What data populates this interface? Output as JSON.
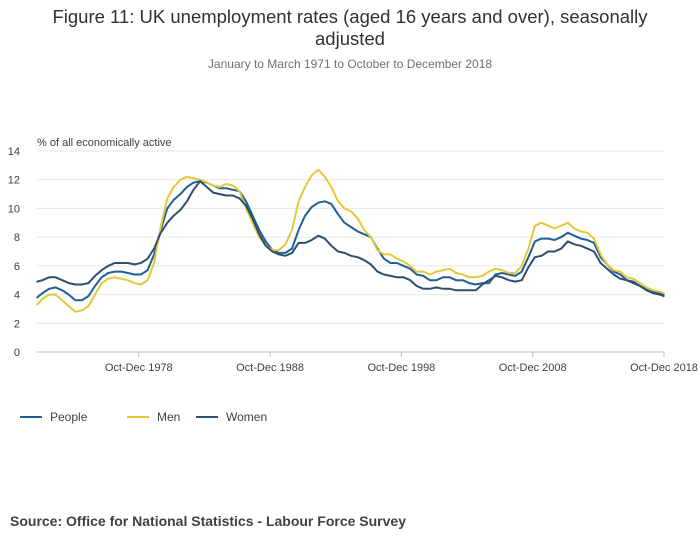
{
  "title": "Figure 11: UK unemployment rates (aged 16 years and over), seasonally adjusted",
  "subtitle": "January to March 1971 to October to December 2018",
  "source": "Source: Office for National Statistics - Labour Force Survey",
  "colors": {
    "people": "#206095",
    "men": "#e6c73a",
    "women": "#2e4f72",
    "gridline": "#e6e6e6",
    "axis_text": "#414042"
  },
  "chart_data": {
    "type": "line",
    "title": "Figure 11: UK unemployment rates (aged 16 years and over), seasonally adjusted",
    "subtitle": "January to March 1971 to October to December 2018",
    "ylabel": "% of all economically active",
    "xlabel": "",
    "ylim": [
      0,
      14
    ],
    "yticks": [
      0,
      2,
      4,
      6,
      8,
      10,
      12,
      14
    ],
    "xlim": [
      1971.08,
      2018.83
    ],
    "xticks": [
      {
        "x": 1978.83,
        "label": "Oct-Dec 1978"
      },
      {
        "x": 1988.83,
        "label": "Oct-Dec 1988"
      },
      {
        "x": 1998.83,
        "label": "Oct-Dec 1998"
      },
      {
        "x": 2008.83,
        "label": "Oct-Dec 2008"
      },
      {
        "x": 2018.83,
        "label": "Oct-Dec 2018"
      }
    ],
    "grid": true,
    "legend": "bottom-left",
    "series": [
      {
        "name": "People",
        "color": "#206095",
        "x": [
          1971.1,
          1971.5,
          1972,
          1972.5,
          1973,
          1973.5,
          1974,
          1974.5,
          1975,
          1975.5,
          1976,
          1976.5,
          1977,
          1977.5,
          1978,
          1978.5,
          1979,
          1979.5,
          1980,
          1980.5,
          1981,
          1981.5,
          1982,
          1982.5,
          1983,
          1983.5,
          1984,
          1984.5,
          1985,
          1985.5,
          1986,
          1986.5,
          1987,
          1987.5,
          1988,
          1988.5,
          1989,
          1989.5,
          1990,
          1990.5,
          1991,
          1991.5,
          1992,
          1992.5,
          1993,
          1993.5,
          1994,
          1994.5,
          1995,
          1995.5,
          1996,
          1996.5,
          1997,
          1997.5,
          1998,
          1998.5,
          1999,
          1999.5,
          2000,
          2000.5,
          2001,
          2001.5,
          2002,
          2002.5,
          2003,
          2003.5,
          2004,
          2004.5,
          2005,
          2005.5,
          2006,
          2006.5,
          2007,
          2007.5,
          2008,
          2008.5,
          2009,
          2009.5,
          2010,
          2010.5,
          2011,
          2011.5,
          2012,
          2012.5,
          2013,
          2013.5,
          2014,
          2014.5,
          2015,
          2015.5,
          2016,
          2016.5,
          2017,
          2017.5,
          2018,
          2018.5,
          2018.8
        ],
        "y": [
          3.8,
          4.1,
          4.4,
          4.5,
          4.3,
          4.0,
          3.6,
          3.6,
          3.9,
          4.6,
          5.2,
          5.5,
          5.6,
          5.6,
          5.5,
          5.4,
          5.4,
          5.7,
          6.8,
          8.5,
          10.0,
          10.6,
          11.0,
          11.5,
          11.8,
          11.9,
          11.8,
          11.6,
          11.4,
          11.4,
          11.3,
          11.2,
          10.5,
          9.5,
          8.5,
          7.7,
          7.1,
          6.9,
          6.9,
          7.2,
          8.5,
          9.5,
          10.1,
          10.4,
          10.5,
          10.3,
          9.6,
          9.0,
          8.7,
          8.4,
          8.2,
          8.0,
          7.2,
          6.5,
          6.2,
          6.2,
          6.0,
          5.8,
          5.4,
          5.3,
          5.0,
          5.0,
          5.2,
          5.2,
          5.0,
          5.0,
          4.8,
          4.7,
          4.8,
          4.8,
          5.4,
          5.5,
          5.4,
          5.3,
          5.6,
          6.6,
          7.7,
          7.9,
          7.9,
          7.8,
          8.0,
          8.3,
          8.1,
          7.9,
          7.8,
          7.6,
          6.6,
          6.1,
          5.6,
          5.4,
          5.0,
          4.9,
          4.6,
          4.4,
          4.2,
          4.1,
          4.0
        ]
      },
      {
        "name": "Men",
        "color": "#e6c73a",
        "x": [
          1971.1,
          1971.5,
          1972,
          1972.5,
          1973,
          1973.5,
          1974,
          1974.5,
          1975,
          1975.5,
          1976,
          1976.5,
          1977,
          1977.5,
          1978,
          1978.5,
          1979,
          1979.5,
          1980,
          1980.5,
          1981,
          1981.5,
          1982,
          1982.5,
          1983,
          1983.5,
          1984,
          1984.5,
          1985,
          1985.5,
          1986,
          1986.5,
          1987,
          1987.5,
          1988,
          1988.5,
          1989,
          1989.5,
          1990,
          1990.5,
          1991,
          1991.5,
          1992,
          1992.5,
          1993,
          1993.5,
          1994,
          1994.5,
          1995,
          1995.5,
          1996,
          1996.5,
          1997,
          1997.5,
          1998,
          1998.5,
          1999,
          1999.5,
          2000,
          2000.5,
          2001,
          2001.5,
          2002,
          2002.5,
          2003,
          2003.5,
          2004,
          2004.5,
          2005,
          2005.5,
          2006,
          2006.5,
          2007,
          2007.5,
          2008,
          2008.5,
          2009,
          2009.5,
          2010,
          2010.5,
          2011,
          2011.5,
          2012,
          2012.5,
          2013,
          2013.5,
          2014,
          2014.5,
          2015,
          2015.5,
          2016,
          2016.5,
          2017,
          2017.5,
          2018,
          2018.5,
          2018.8
        ],
        "y": [
          3.3,
          3.7,
          4.0,
          4.0,
          3.6,
          3.2,
          2.8,
          2.9,
          3.2,
          4.0,
          4.8,
          5.1,
          5.2,
          5.1,
          5.0,
          4.8,
          4.7,
          5.0,
          6.2,
          8.7,
          10.7,
          11.5,
          12.0,
          12.2,
          12.1,
          12.0,
          11.8,
          11.6,
          11.5,
          11.7,
          11.6,
          11.2,
          10.0,
          9.0,
          8.0,
          7.4,
          7.1,
          7.1,
          7.5,
          8.5,
          10.5,
          11.5,
          12.3,
          12.7,
          12.2,
          11.5,
          10.5,
          10.0,
          9.8,
          9.3,
          8.5,
          8.0,
          7.1,
          6.8,
          6.8,
          6.5,
          6.3,
          6.0,
          5.6,
          5.6,
          5.4,
          5.6,
          5.7,
          5.8,
          5.5,
          5.4,
          5.2,
          5.2,
          5.3,
          5.6,
          5.8,
          5.7,
          5.5,
          5.5,
          6.0,
          7.2,
          8.8,
          9.0,
          8.8,
          8.6,
          8.8,
          9.0,
          8.6,
          8.4,
          8.3,
          7.9,
          6.8,
          6.1,
          5.7,
          5.6,
          5.2,
          5.1,
          4.8,
          4.5,
          4.3,
          4.2,
          4.1
        ]
      },
      {
        "name": "Women",
        "color": "#2e4f72",
        "x": [
          1971.1,
          1971.5,
          1972,
          1972.5,
          1973,
          1973.5,
          1974,
          1974.5,
          1975,
          1975.5,
          1976,
          1976.5,
          1977,
          1977.5,
          1978,
          1978.5,
          1979,
          1979.5,
          1980,
          1980.5,
          1981,
          1981.5,
          1982,
          1982.5,
          1983,
          1983.5,
          1984,
          1984.5,
          1985,
          1985.5,
          1986,
          1986.5,
          1987,
          1987.5,
          1988,
          1988.5,
          1989,
          1989.5,
          1990,
          1990.5,
          1991,
          1991.5,
          1992,
          1992.5,
          1993,
          1993.5,
          1994,
          1994.5,
          1995,
          1995.5,
          1996,
          1996.5,
          1997,
          1997.5,
          1998,
          1998.5,
          1999,
          1999.5,
          2000,
          2000.5,
          2001,
          2001.5,
          2002,
          2002.5,
          2003,
          2003.5,
          2004,
          2004.5,
          2005,
          2005.5,
          2006,
          2006.5,
          2007,
          2007.5,
          2008,
          2008.5,
          2009,
          2009.5,
          2010,
          2010.5,
          2011,
          2011.5,
          2012,
          2012.5,
          2013,
          2013.5,
          2014,
          2014.5,
          2015,
          2015.5,
          2016,
          2016.5,
          2017,
          2017.5,
          2018,
          2018.5,
          2018.8
        ],
        "y": [
          4.9,
          5.0,
          5.2,
          5.2,
          5.0,
          4.8,
          4.7,
          4.7,
          4.8,
          5.3,
          5.7,
          6.0,
          6.2,
          6.2,
          6.2,
          6.1,
          6.2,
          6.5,
          7.2,
          8.3,
          9.0,
          9.5,
          9.9,
          10.5,
          11.3,
          11.9,
          11.5,
          11.1,
          11.0,
          10.9,
          10.9,
          10.7,
          10.2,
          9.3,
          8.2,
          7.4,
          7.0,
          6.8,
          6.7,
          6.9,
          7.6,
          7.6,
          7.8,
          8.1,
          7.9,
          7.4,
          7.0,
          6.9,
          6.7,
          6.6,
          6.4,
          6.1,
          5.6,
          5.4,
          5.3,
          5.2,
          5.2,
          5.0,
          4.6,
          4.4,
          4.4,
          4.5,
          4.4,
          4.4,
          4.3,
          4.3,
          4.3,
          4.3,
          4.7,
          5.0,
          5.3,
          5.2,
          5.0,
          4.9,
          5.0,
          5.9,
          6.6,
          6.7,
          7.0,
          7.0,
          7.2,
          7.7,
          7.5,
          7.4,
          7.2,
          7.0,
          6.2,
          5.8,
          5.4,
          5.1,
          5.0,
          4.8,
          4.6,
          4.3,
          4.1,
          4.0,
          3.9
        ]
      }
    ]
  }
}
